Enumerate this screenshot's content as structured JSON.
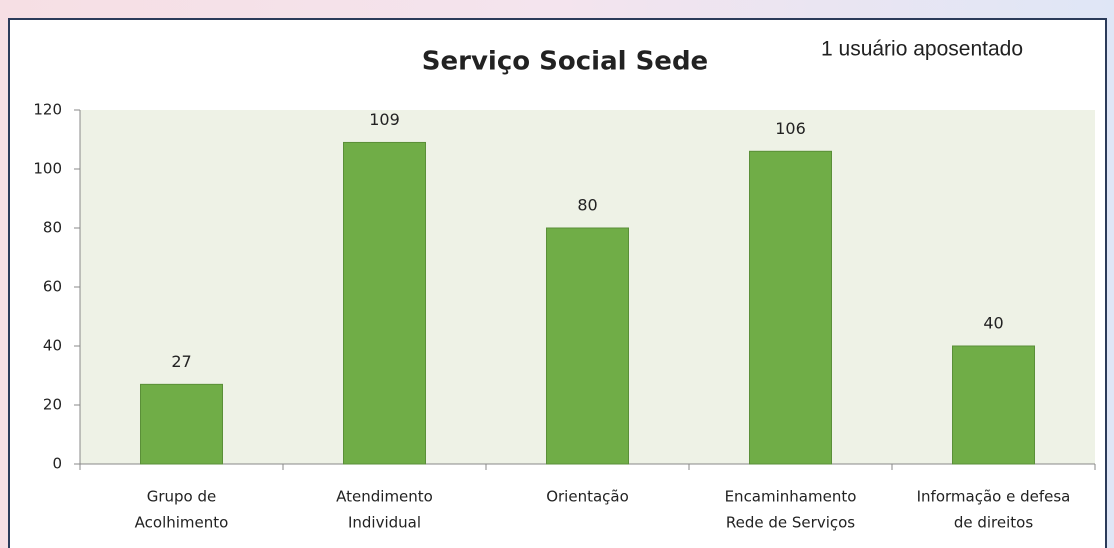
{
  "chart_data": {
    "type": "bar",
    "title": "Serviço Social Sede",
    "annotation": "1 usuário aposentado",
    "categories": [
      [
        "Grupo de",
        "Acolhimento"
      ],
      [
        "Atendimento",
        "Individual"
      ],
      [
        "Orientação"
      ],
      [
        "Encaminhamento",
        "Rede de Serviços"
      ],
      [
        "Informação e defesa",
        "de direitos"
      ]
    ],
    "values": [
      27,
      109,
      80,
      106,
      40
    ],
    "color": "#70ad47",
    "ylim": [
      0,
      120
    ],
    "yticks": [
      0,
      20,
      40,
      60,
      80,
      100,
      120
    ],
    "grid": false
  }
}
